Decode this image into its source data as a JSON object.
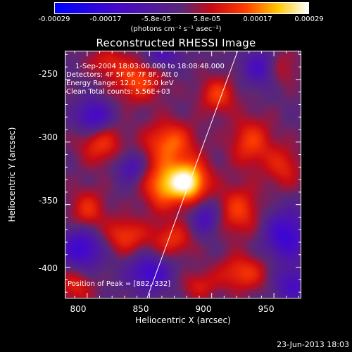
{
  "colorbar": {
    "ticks": [
      "-0.00029",
      "-0.00017",
      "-5.8e-05",
      "5.8e-05",
      "0.00017",
      "0.00029"
    ],
    "units": "(photons cm⁻² s⁻¹ asec⁻²)",
    "range": [
      -0.00029,
      0.00029
    ]
  },
  "annotations": {
    "time_range": "1-Sep-2004 18:03:00.000 to 18:08:48.000",
    "detectors": "Detectors: 4F 5F 6F 7F 8F, Att 0",
    "energy": "Energy Range: 12.0 - 25.0 keV",
    "clean": "Clean     Total counts: 5.56E+03",
    "peak": "Position of Peak = [882,-332]"
  },
  "timestamp": "23-Jun-2013 18:03",
  "chart_data": {
    "type": "heatmap",
    "title": "Reconstructed RHESSI Image",
    "xlabel": "Heliocentric X (arcsec)",
    "ylabel": "Heliocentric Y (arcsec)",
    "xlim": [
      782,
      972
    ],
    "ylim": [
      -425,
      -227
    ],
    "xticks": [
      800,
      850,
      900,
      950
    ],
    "yticks": [
      -250,
      -300,
      -350,
      -400
    ],
    "peak": {
      "x": 882,
      "y": -332
    },
    "limb_line": {
      "x1": 848,
      "y1": -425,
      "x2": 921,
      "y2": -227
    },
    "colors": {
      "negative": "#0000ff",
      "zero": "#5a2a7a",
      "positive": "#ff2a00",
      "max": "#ffffff"
    },
    "blobs": [
      {
        "x": 880,
        "y": -332,
        "sx": 12,
        "sy": 12,
        "a": 1.0
      },
      {
        "x": 866,
        "y": -300,
        "sx": 14,
        "sy": 12,
        "a": 0.55
      },
      {
        "x": 858,
        "y": -335,
        "sx": 10,
        "sy": 14,
        "a": 0.5
      },
      {
        "x": 840,
        "y": -250,
        "sx": 14,
        "sy": 12,
        "a": 0.5
      },
      {
        "x": 905,
        "y": -262,
        "sx": 10,
        "sy": 10,
        "a": 0.45
      },
      {
        "x": 932,
        "y": -300,
        "sx": 12,
        "sy": 14,
        "a": 0.45
      },
      {
        "x": 810,
        "y": -300,
        "sx": 12,
        "sy": 12,
        "a": 0.45
      },
      {
        "x": 800,
        "y": -355,
        "sx": 10,
        "sy": 12,
        "a": 0.4
      },
      {
        "x": 830,
        "y": -375,
        "sx": 12,
        "sy": 10,
        "a": 0.45
      },
      {
        "x": 868,
        "y": -378,
        "sx": 12,
        "sy": 10,
        "a": 0.4
      },
      {
        "x": 922,
        "y": -355,
        "sx": 12,
        "sy": 14,
        "a": 0.45
      },
      {
        "x": 958,
        "y": -320,
        "sx": 10,
        "sy": 12,
        "a": 0.35
      },
      {
        "x": 925,
        "y": -405,
        "sx": 14,
        "sy": 10,
        "a": 0.45
      },
      {
        "x": 790,
        "y": -415,
        "sx": 10,
        "sy": 10,
        "a": 0.35
      },
      {
        "x": 955,
        "y": -240,
        "sx": 10,
        "sy": 10,
        "a": 0.3
      },
      {
        "x": 815,
        "y": -235,
        "sx": 10,
        "sy": 8,
        "a": 0.3
      },
      {
        "x": 890,
        "y": -415,
        "sx": 10,
        "sy": 8,
        "a": 0.3
      },
      {
        "x": 805,
        "y": -280,
        "sx": 10,
        "sy": 10,
        "a": -0.6
      },
      {
        "x": 795,
        "y": -385,
        "sx": 12,
        "sy": 12,
        "a": -0.6
      },
      {
        "x": 850,
        "y": -405,
        "sx": 12,
        "sy": 10,
        "a": -0.55
      },
      {
        "x": 960,
        "y": -375,
        "sx": 12,
        "sy": 14,
        "a": -0.6
      },
      {
        "x": 940,
        "y": -240,
        "sx": 10,
        "sy": 10,
        "a": -0.5
      },
      {
        "x": 965,
        "y": -415,
        "sx": 10,
        "sy": 10,
        "a": -0.45
      },
      {
        "x": 895,
        "y": -360,
        "sx": 8,
        "sy": 10,
        "a": -0.45
      },
      {
        "x": 835,
        "y": -320,
        "sx": 8,
        "sy": 8,
        "a": -0.4
      },
      {
        "x": 860,
        "y": -230,
        "sx": 10,
        "sy": 8,
        "a": -0.4
      }
    ]
  }
}
